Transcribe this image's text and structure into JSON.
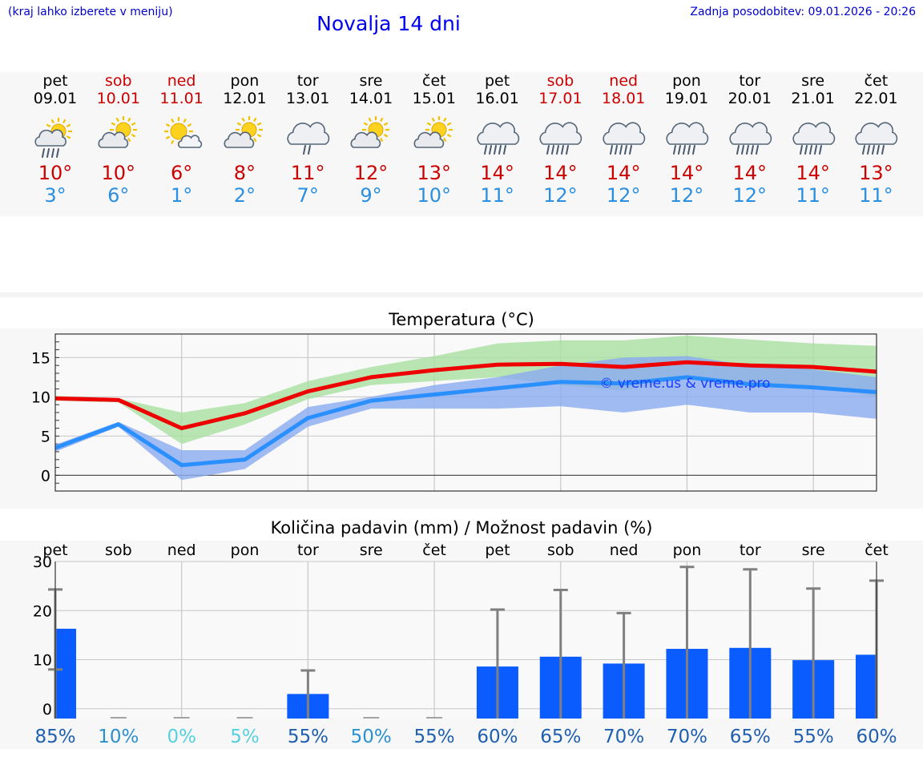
{
  "header": {
    "hint": "(kraj lahko izberete v meniju)",
    "title": "Novalja 14 dni",
    "updated": "Zadnja posodobitev: 09.01.2026 - 20:26"
  },
  "days": [
    {
      "name": "pet",
      "date": "09.01",
      "max": "10°",
      "min": "3°",
      "icon": "sun-cloud-rain-icon",
      "weekend": false
    },
    {
      "name": "sob",
      "date": "10.01",
      "max": "10°",
      "min": "6°",
      "icon": "sun-cloud-icon",
      "weekend": true
    },
    {
      "name": "ned",
      "date": "11.01",
      "max": "6°",
      "min": "1°",
      "icon": "sun-small-cloud-icon",
      "weekend": true
    },
    {
      "name": "pon",
      "date": "12.01",
      "max": "8°",
      "min": "2°",
      "icon": "sun-cloud-icon",
      "weekend": false
    },
    {
      "name": "tor",
      "date": "13.01",
      "max": "11°",
      "min": "7°",
      "icon": "cloud-light-rain-icon",
      "weekend": false
    },
    {
      "name": "sre",
      "date": "14.01",
      "max": "12°",
      "min": "9°",
      "icon": "sun-cloud-icon",
      "weekend": false
    },
    {
      "name": "čet",
      "date": "15.01",
      "max": "13°",
      "min": "10°",
      "icon": "sun-cloud-icon",
      "weekend": false
    },
    {
      "name": "pet",
      "date": "16.01",
      "max": "14°",
      "min": "11°",
      "icon": "cloud-rain-icon",
      "weekend": false
    },
    {
      "name": "sob",
      "date": "17.01",
      "max": "14°",
      "min": "12°",
      "icon": "cloud-rain-icon",
      "weekend": true
    },
    {
      "name": "ned",
      "date": "18.01",
      "max": "14°",
      "min": "12°",
      "icon": "cloud-rain-icon",
      "weekend": true
    },
    {
      "name": "pon",
      "date": "19.01",
      "max": "14°",
      "min": "12°",
      "icon": "cloud-rain-icon",
      "weekend": false
    },
    {
      "name": "tor",
      "date": "20.01",
      "max": "14°",
      "min": "12°",
      "icon": "cloud-rain-icon",
      "weekend": false
    },
    {
      "name": "sre",
      "date": "21.01",
      "max": "14°",
      "min": "11°",
      "icon": "cloud-rain-icon",
      "weekend": false
    },
    {
      "name": "čet",
      "date": "22.01",
      "max": "13°",
      "min": "11°",
      "icon": "cloud-rain-icon",
      "weekend": false
    }
  ],
  "colors": {
    "max_line": "#ee0000",
    "max_band": "#a8e0a0",
    "min_line": "#2a8fff",
    "min_band": "#8aaaf0",
    "bar": "#0a5cff",
    "whisker": "#808080",
    "grid": "#c8c8c8"
  },
  "chart_data": [
    {
      "type": "line",
      "title": "Temperatura (°C)",
      "watermark": "© vreme.us & vreme.pro",
      "ylim": [
        -2,
        18
      ],
      "yticks": [
        0,
        5,
        10,
        15
      ],
      "x": [
        "09.01",
        "10.01",
        "11.01",
        "12.01",
        "13.01",
        "14.01",
        "15.01",
        "16.01",
        "17.01",
        "18.01",
        "19.01",
        "20.01",
        "21.01",
        "22.01"
      ],
      "series": [
        {
          "name": "max",
          "values": [
            9.8,
            9.6,
            6.0,
            7.9,
            10.7,
            12.5,
            13.4,
            14.1,
            14.2,
            13.8,
            14.4,
            14.0,
            13.8,
            13.2
          ],
          "band_low": [
            9.5,
            9.3,
            4.0,
            6.5,
            9.7,
            11.5,
            12.0,
            12.5,
            11.5,
            10.8,
            12.5,
            11.5,
            11.5,
            10.0
          ],
          "band_high": [
            10.1,
            9.8,
            8.0,
            9.2,
            12.0,
            13.8,
            15.2,
            16.8,
            17.2,
            17.2,
            17.8,
            17.3,
            16.8,
            16.5
          ]
        },
        {
          "name": "min",
          "values": [
            3.5,
            6.5,
            1.3,
            2.0,
            7.3,
            9.5,
            10.3,
            11.1,
            11.9,
            11.7,
            12.5,
            11.6,
            11.2,
            10.6
          ],
          "band_low": [
            3.0,
            6.2,
            -0.6,
            0.8,
            6.2,
            8.5,
            8.5,
            8.5,
            8.8,
            8.0,
            9.0,
            8.0,
            8.0,
            7.2
          ],
          "band_high": [
            3.9,
            6.8,
            3.2,
            3.2,
            8.7,
            10.0,
            11.5,
            12.5,
            14.0,
            15.0,
            15.2,
            14.0,
            13.5,
            12.5
          ]
        }
      ]
    },
    {
      "type": "bar",
      "title": "Količina padavin (mm) / Možnost padavin (%)",
      "ylim": [
        -2,
        30
      ],
      "yticks": [
        0,
        10,
        20,
        30
      ],
      "categories": [
        "pet",
        "sob",
        "ned",
        "pon",
        "tor",
        "sre",
        "čet",
        "pet",
        "sob",
        "ned",
        "pon",
        "tor",
        "sre",
        "čet"
      ],
      "values": [
        16.3,
        0,
        0,
        0,
        3.0,
        0,
        0,
        8.6,
        10.6,
        9.2,
        12.2,
        12.4,
        9.9,
        11.0
      ],
      "error_high": [
        24.3,
        0,
        0,
        0,
        7.8,
        0,
        0,
        20.2,
        24.2,
        19.5,
        28.9,
        28.4,
        24.5,
        26.1
      ],
      "error_low": [
        8.0,
        0,
        0,
        0,
        0,
        0,
        0,
        0,
        0,
        0,
        0,
        0,
        0,
        0
      ],
      "probability": [
        "85%",
        "10%",
        "0%",
        "5%",
        "55%",
        "50%",
        "55%",
        "60%",
        "65%",
        "70%",
        "70%",
        "65%",
        "55%",
        "60%"
      ],
      "probability_values": [
        85,
        10,
        0,
        5,
        55,
        50,
        55,
        60,
        65,
        70,
        70,
        65,
        55,
        60
      ]
    }
  ]
}
